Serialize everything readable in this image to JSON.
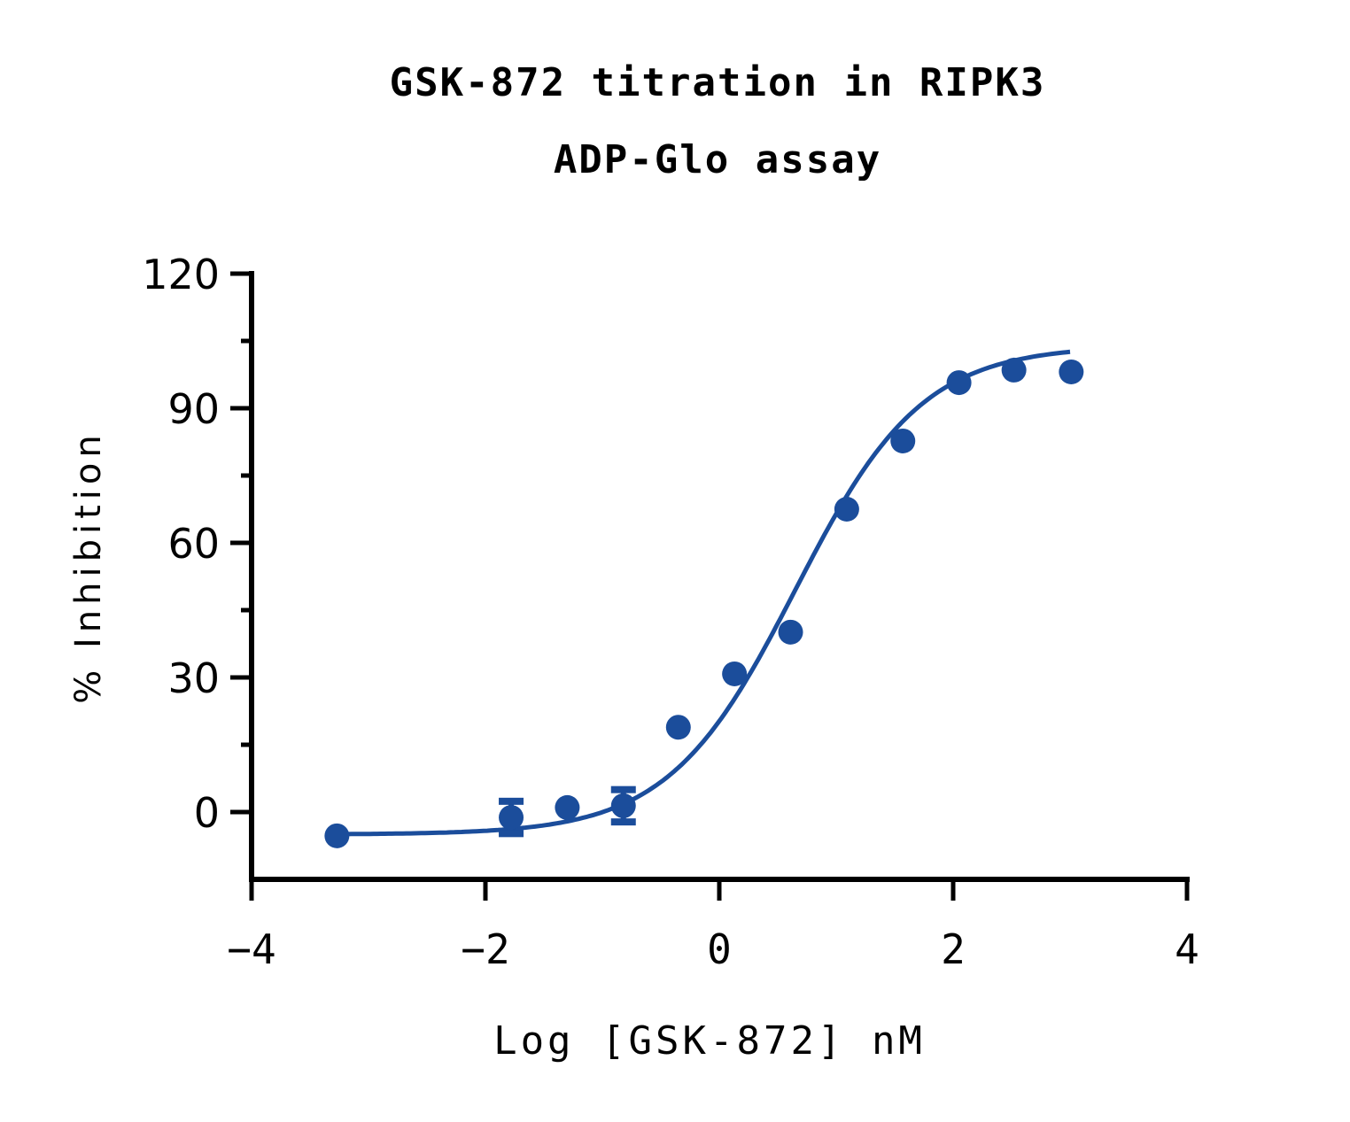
{
  "chart": {
    "title_line1": "GSK-872 titration in RIPK3",
    "title_line2": "ADP-Glo assay",
    "xlabel": "Log [GSK-872] nM",
    "ylabel": "% Inhibition",
    "color": "#1b4d9b"
  },
  "chart_data": {
    "type": "scatter",
    "title": "GSK-872 titration in RIPK3 ADP-Glo assay",
    "xlabel": "Log [GSK-872] nM",
    "ylabel": "% Inhibition",
    "xlim": [
      -4,
      4
    ],
    "ylim": [
      -15,
      120
    ],
    "xticks": [
      -4,
      -2,
      0,
      2,
      4
    ],
    "yticks": [
      0,
      30,
      60,
      90,
      120
    ],
    "grid": false,
    "legend": null,
    "series": [
      {
        "name": "GSK-872",
        "marker": "circle",
        "color": "#1b4d9b",
        "x": [
          -3.27,
          -1.78,
          -1.3,
          -0.82,
          -0.35,
          0.13,
          0.61,
          1.09,
          1.57,
          2.05,
          2.52,
          3.01
        ],
        "y": [
          -5.3,
          -1.2,
          1.0,
          1.4,
          18.9,
          30.8,
          40.1,
          67.5,
          82.7,
          95.7,
          98.5,
          98.1
        ],
        "error": [
          0,
          3.6,
          0,
          3.6,
          0,
          0,
          0,
          0,
          0,
          0,
          0,
          0
        ]
      }
    ],
    "fit": {
      "type": "four-parameter logistic (sigmoidal dose-response)",
      "bottom": -5,
      "top": 104,
      "logIC50": 0.65,
      "hill_slope": 0.8,
      "x_range": [
        -3.27,
        3.0
      ]
    }
  }
}
